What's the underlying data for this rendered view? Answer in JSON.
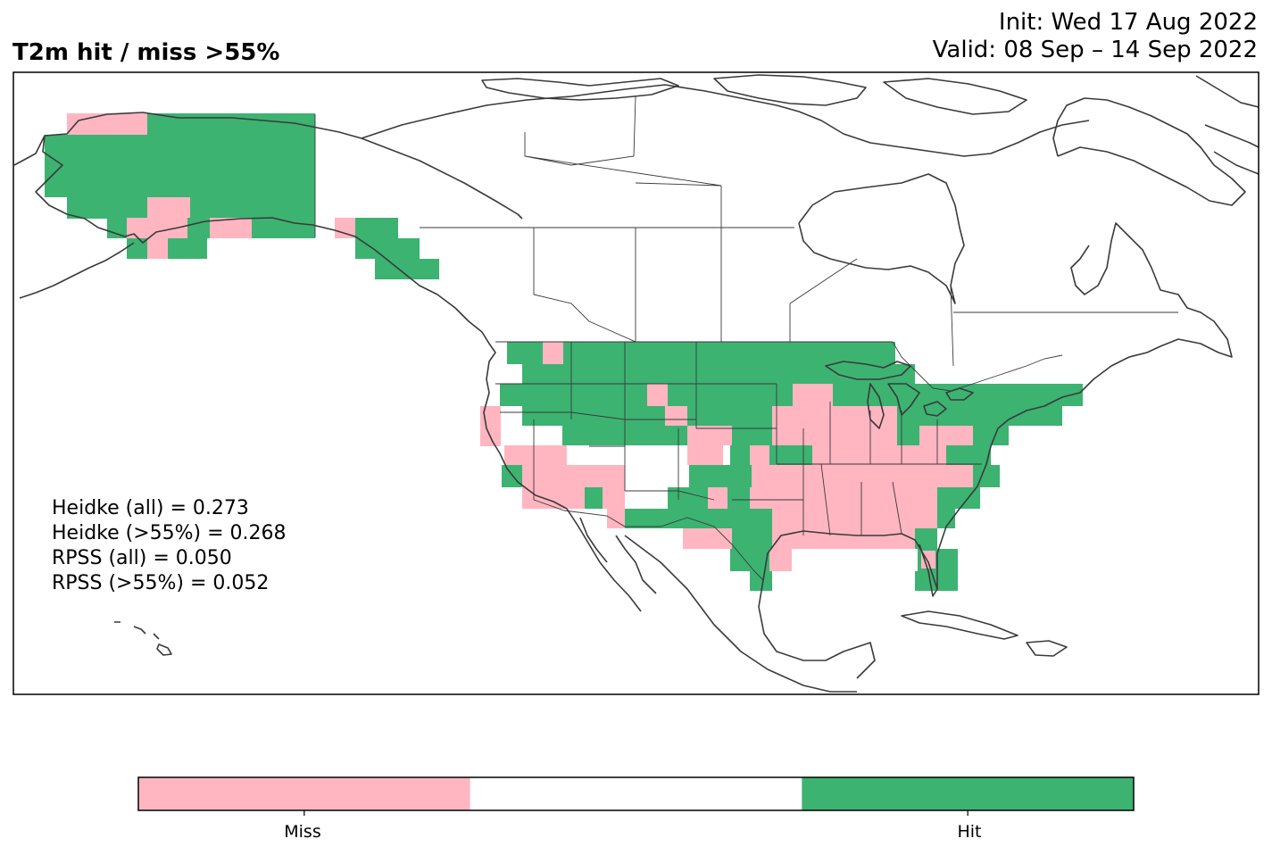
{
  "header": {
    "title": "T2m hit / miss  >55%",
    "init": "Init: Wed 17 Aug 2022",
    "valid": "Valid: 08 Sep – 14 Sep 2022"
  },
  "stats": [
    "Heidke (all) = 0.273",
    "Heidke (>55%) = 0.268",
    "RPSS (all) = 0.050",
    "RPSS (>55%) = 0.052"
  ],
  "legend": {
    "categories": [
      {
        "label": "Miss",
        "color": "#ffb6c1"
      },
      {
        "label": "",
        "color": "#ffffff"
      },
      {
        "label": "Hit",
        "color": "#3cb371"
      }
    ],
    "tick_labels": [
      "Miss",
      "Hit"
    ]
  },
  "colors": {
    "miss": "#ffb6c1",
    "hit": "#3cb371",
    "coast": "#3a3a3a",
    "frame": "#000000"
  }
}
